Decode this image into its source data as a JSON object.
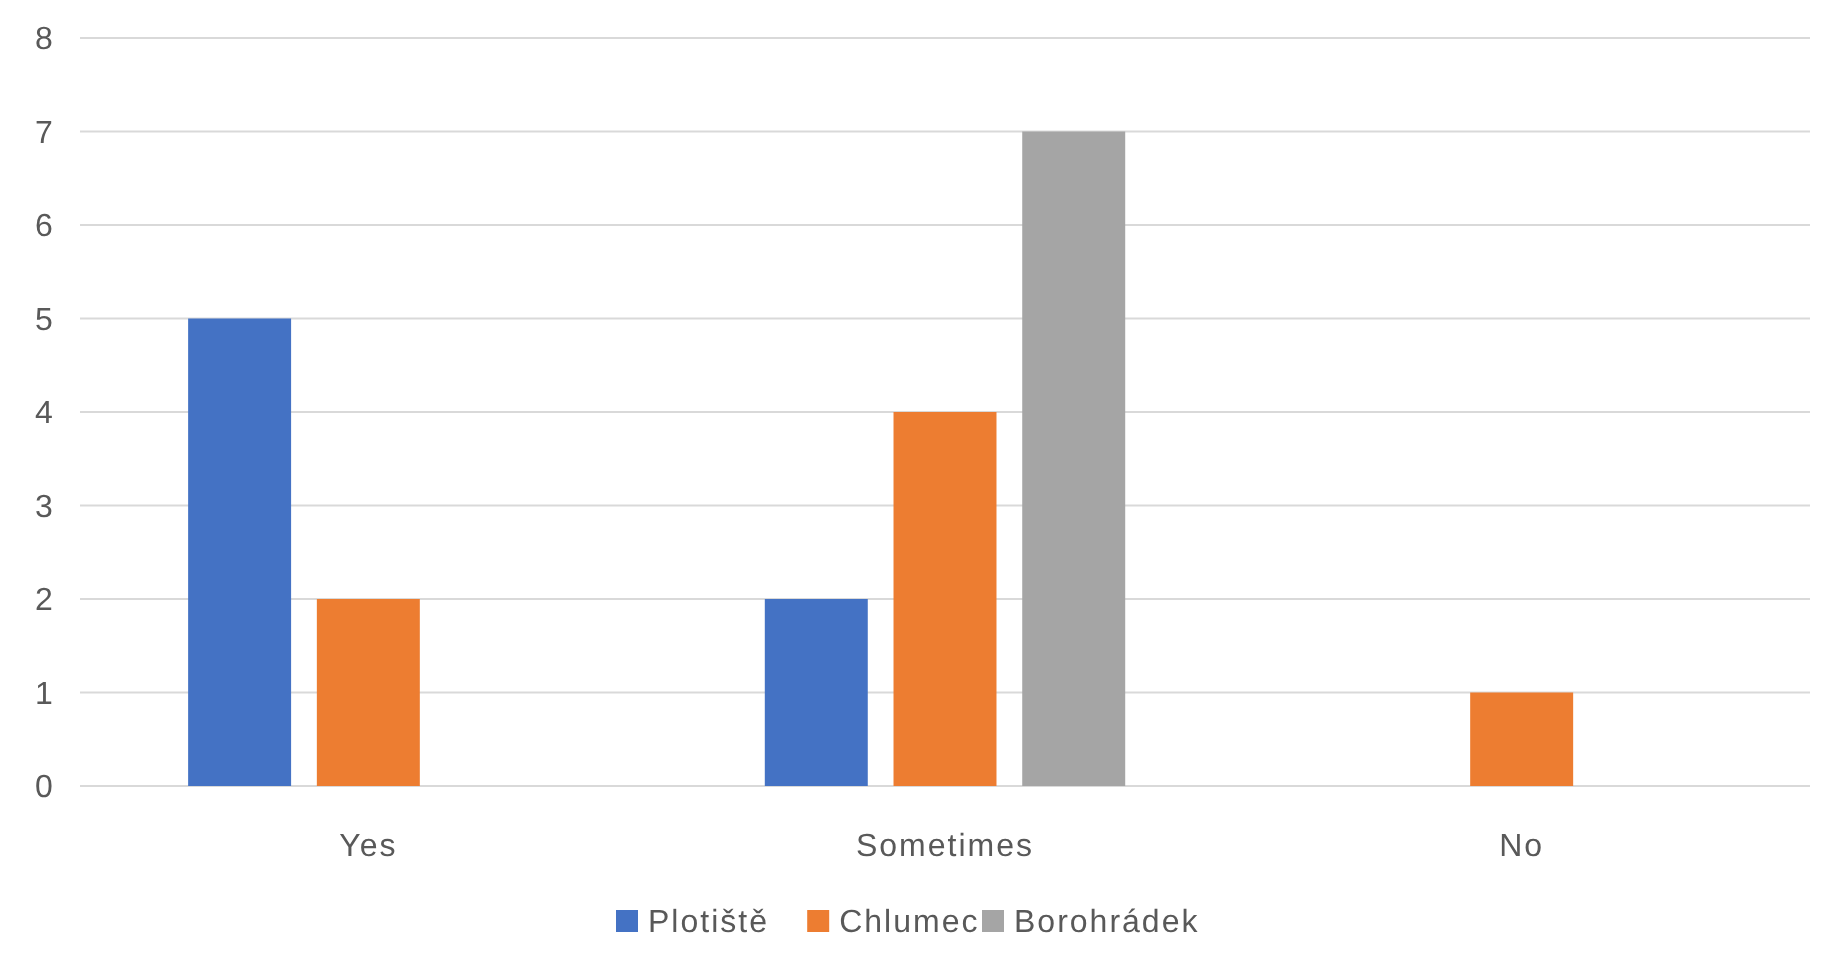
{
  "chart_data": {
    "type": "bar",
    "categories": [
      "Yes",
      "Sometimes",
      "No"
    ],
    "series": [
      {
        "name": "Plotiště",
        "color": "#4472c4",
        "values": [
          5,
          2,
          0
        ]
      },
      {
        "name": "Chlumec",
        "color": "#ed7d31",
        "values": [
          2,
          4,
          1
        ]
      },
      {
        "name": "Borohrádek",
        "color": "#a5a5a5",
        "values": [
          0,
          7,
          0
        ]
      }
    ],
    "ylim": [
      0,
      8
    ],
    "yticks": [
      0,
      1,
      2,
      3,
      4,
      5,
      6,
      7,
      8
    ],
    "grid": "y",
    "legend": "bottom"
  }
}
